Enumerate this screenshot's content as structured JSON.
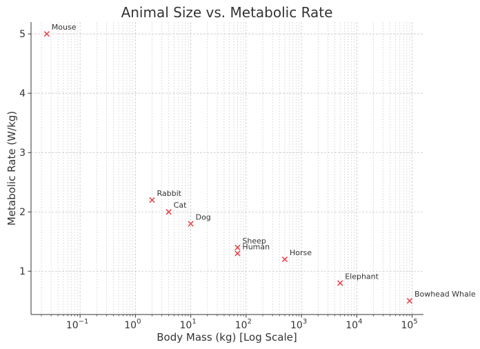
{
  "chart_data": {
    "type": "scatter",
    "title": "Animal Size vs. Metabolic Rate",
    "xlabel": "Body Mass (kg) [Log Scale]",
    "ylabel": "Metabolic Rate (W/kg)",
    "x_scale": "log",
    "xlim": [
      0.013,
      160000
    ],
    "ylim": [
      0.27,
      5.2
    ],
    "x_major_ticks": [
      {
        "value": 0.1,
        "base": "10",
        "exp": "−1"
      },
      {
        "value": 1,
        "base": "10",
        "exp": "0"
      },
      {
        "value": 10,
        "base": "10",
        "exp": "1"
      },
      {
        "value": 100,
        "base": "10",
        "exp": "2"
      },
      {
        "value": 1000,
        "base": "10",
        "exp": "3"
      },
      {
        "value": 10000,
        "base": "10",
        "exp": "4"
      },
      {
        "value": 100000,
        "base": "10",
        "exp": "5"
      }
    ],
    "y_ticks": [
      {
        "value": 1,
        "label": "1"
      },
      {
        "value": 2,
        "label": "2"
      },
      {
        "value": 3,
        "label": "3"
      },
      {
        "value": 4,
        "label": "4"
      },
      {
        "value": 5,
        "label": "5"
      }
    ],
    "grid": true,
    "marker": "x",
    "marker_color": "#e8474c",
    "points": [
      {
        "label": "Mouse",
        "x": 0.025,
        "y": 5.0
      },
      {
        "label": "Rabbit",
        "x": 2,
        "y": 2.2
      },
      {
        "label": "Cat",
        "x": 4,
        "y": 2.0
      },
      {
        "label": "Dog",
        "x": 10,
        "y": 1.8
      },
      {
        "label": "Sheep",
        "x": 70,
        "y": 1.4
      },
      {
        "label": "Human",
        "x": 70,
        "y": 1.3
      },
      {
        "label": "Horse",
        "x": 500,
        "y": 1.2
      },
      {
        "label": "Elephant",
        "x": 5000,
        "y": 0.8
      },
      {
        "label": "Bowhead Whale",
        "x": 90000,
        "y": 0.5
      }
    ]
  }
}
